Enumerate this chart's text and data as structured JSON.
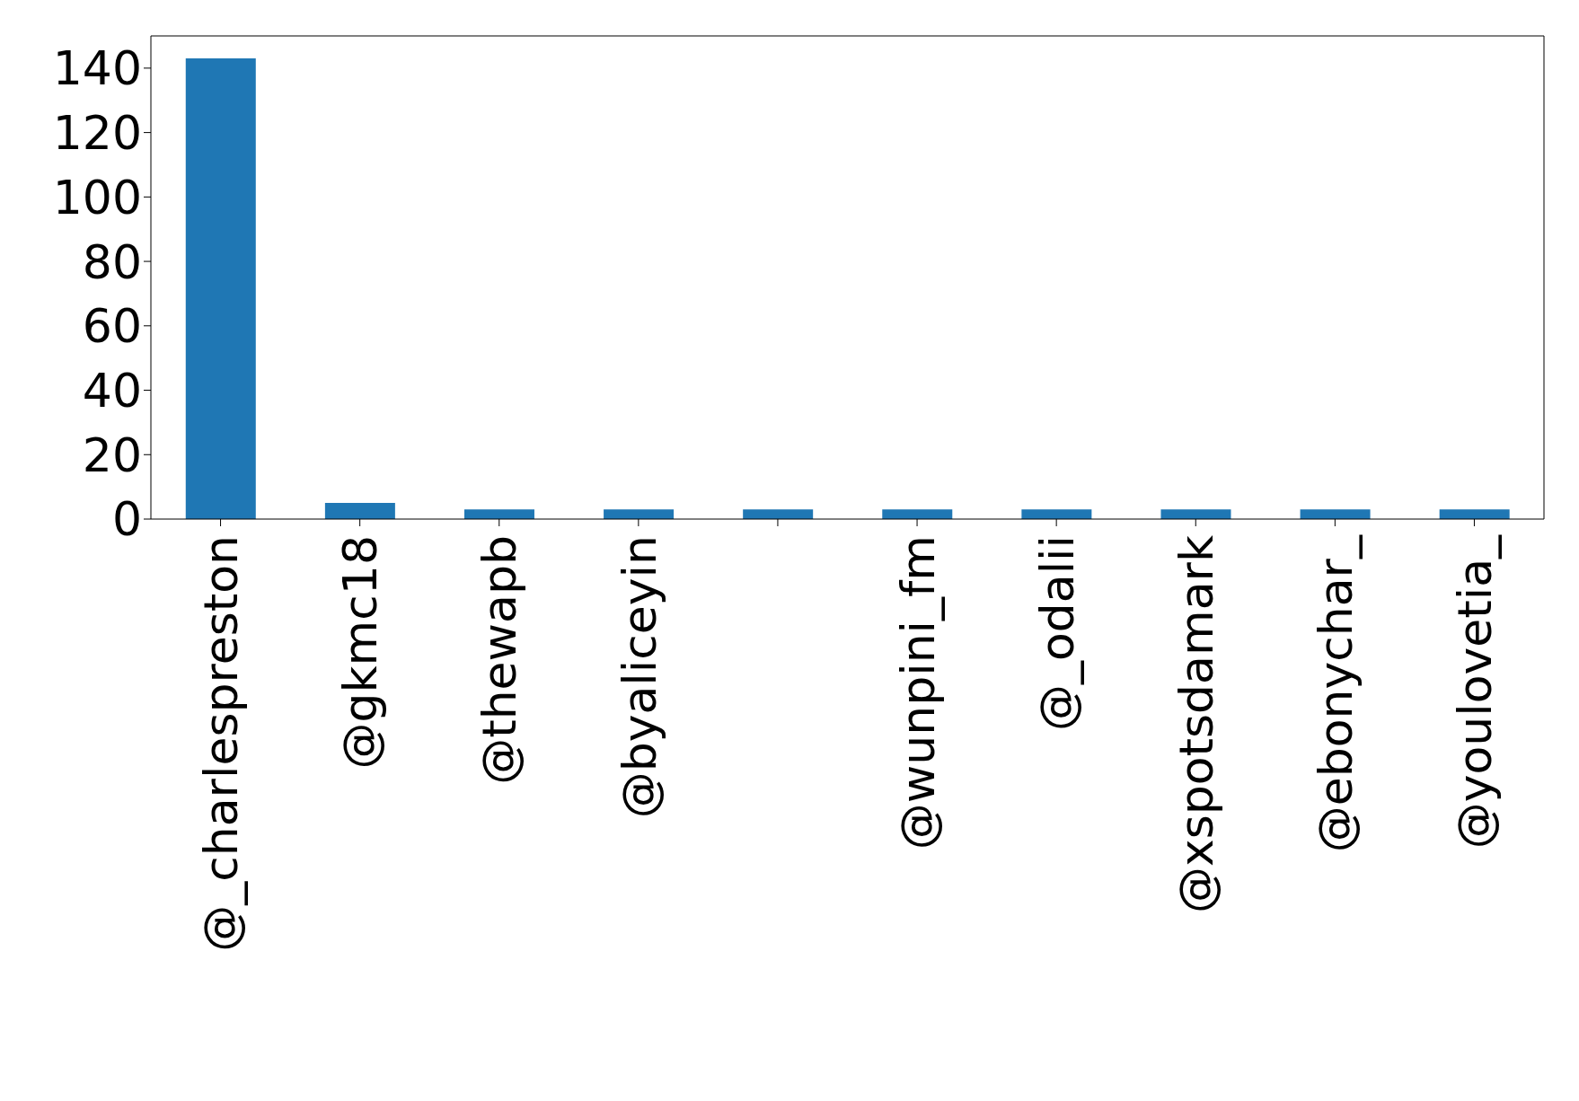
{
  "chart_data": {
    "type": "bar",
    "categories": [
      "@_charlespreston",
      "@gkmc18",
      "@thewapb",
      "@byaliceyin",
      null,
      "@wunpini_fm",
      "@_odalii",
      "@xspotsdamark",
      "@ebonychar_",
      "@youlovetia_"
    ],
    "values": [
      143,
      5,
      3,
      3,
      3,
      3,
      3,
      3,
      3,
      3
    ],
    "color": "#1f77b4",
    "ylim": [
      0,
      150
    ],
    "yticks": [
      0,
      20,
      40,
      60,
      80,
      100,
      120,
      140
    ],
    "grid": false,
    "legend": false
  }
}
